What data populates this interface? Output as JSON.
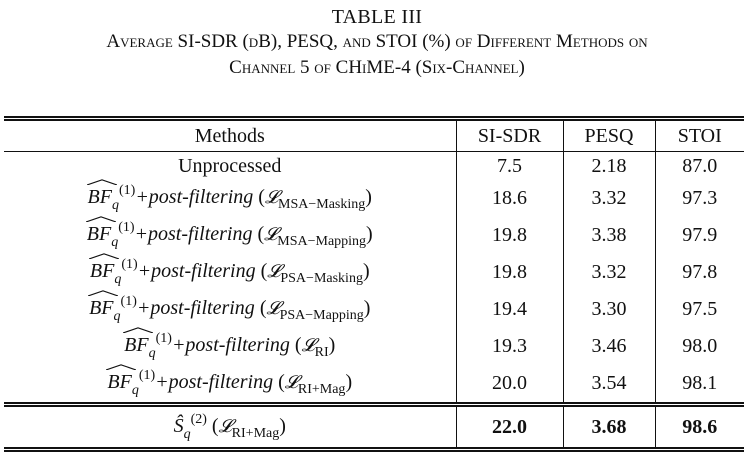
{
  "caption": {
    "table_number": "TABLE III",
    "line1": "Average SI-SDR (dB), PESQ, and STOI (%) of Different Methods on",
    "line2": "Channel 5 of CHiME-4 (Six-Channel)"
  },
  "table": {
    "headers": [
      "Methods",
      "SI-SDR",
      "PESQ",
      "STOI"
    ],
    "rows": [
      {
        "method": "Unprocessed",
        "si_sdr": "7.5",
        "pesq": "2.18",
        "stoi": "87.0"
      },
      {
        "bf": "BF",
        "bf_sub": "q",
        "bf_sup": "(1)",
        "post": "+post-filtering",
        "loss": "𝓛",
        "loss_sub": "MSA−Masking",
        "si_sdr": "18.6",
        "pesq": "3.32",
        "stoi": "97.3"
      },
      {
        "bf": "BF",
        "bf_sub": "q",
        "bf_sup": "(1)",
        "post": "+post-filtering",
        "loss": "𝓛",
        "loss_sub": "MSA−Mapping",
        "si_sdr": "19.8",
        "pesq": "3.38",
        "stoi": "97.9"
      },
      {
        "bf": "BF",
        "bf_sub": "q",
        "bf_sup": "(1)",
        "post": "+post-filtering",
        "loss": "𝓛",
        "loss_sub": "PSA−Masking",
        "si_sdr": "19.8",
        "pesq": "3.32",
        "stoi": "97.8"
      },
      {
        "bf": "BF",
        "bf_sub": "q",
        "bf_sup": "(1)",
        "post": "+post-filtering",
        "loss": "𝓛",
        "loss_sub": "PSA−Mapping",
        "si_sdr": "19.4",
        "pesq": "3.30",
        "stoi": "97.5"
      },
      {
        "bf": "BF",
        "bf_sub": "q",
        "bf_sup": "(1)",
        "post": "+post-filtering",
        "loss": "𝓛",
        "loss_sub": "RI",
        "si_sdr": "19.3",
        "pesq": "3.46",
        "stoi": "98.0"
      },
      {
        "bf": "BF",
        "bf_sub": "q",
        "bf_sup": "(1)",
        "post": "+post-filtering",
        "loss": "𝓛",
        "loss_sub": "RI+Mag",
        "si_sdr": "20.0",
        "pesq": "3.54",
        "stoi": "98.1"
      }
    ],
    "final_row": {
      "symbol": "Ŝ",
      "sub": "q",
      "sup": "(2)",
      "loss": "𝓛",
      "loss_sub": "RI+Mag",
      "si_sdr": "22.0",
      "pesq": "3.68",
      "stoi": "98.6"
    }
  }
}
